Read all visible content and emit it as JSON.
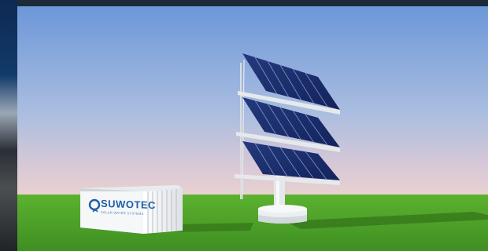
{
  "scene": {
    "container_brand": "SUWOTEC",
    "container_tagline": "SOLAR WATER SYSTEMS",
    "colors": {
      "sky_top": "#6f99d8",
      "sky_bottom": "#e4cfd2",
      "grass": "#4fa32a",
      "panel": "#1a2d6e",
      "frame": "#e6e9ec",
      "container": "#f2f4f6",
      "brand": "#1e5fa6"
    }
  }
}
